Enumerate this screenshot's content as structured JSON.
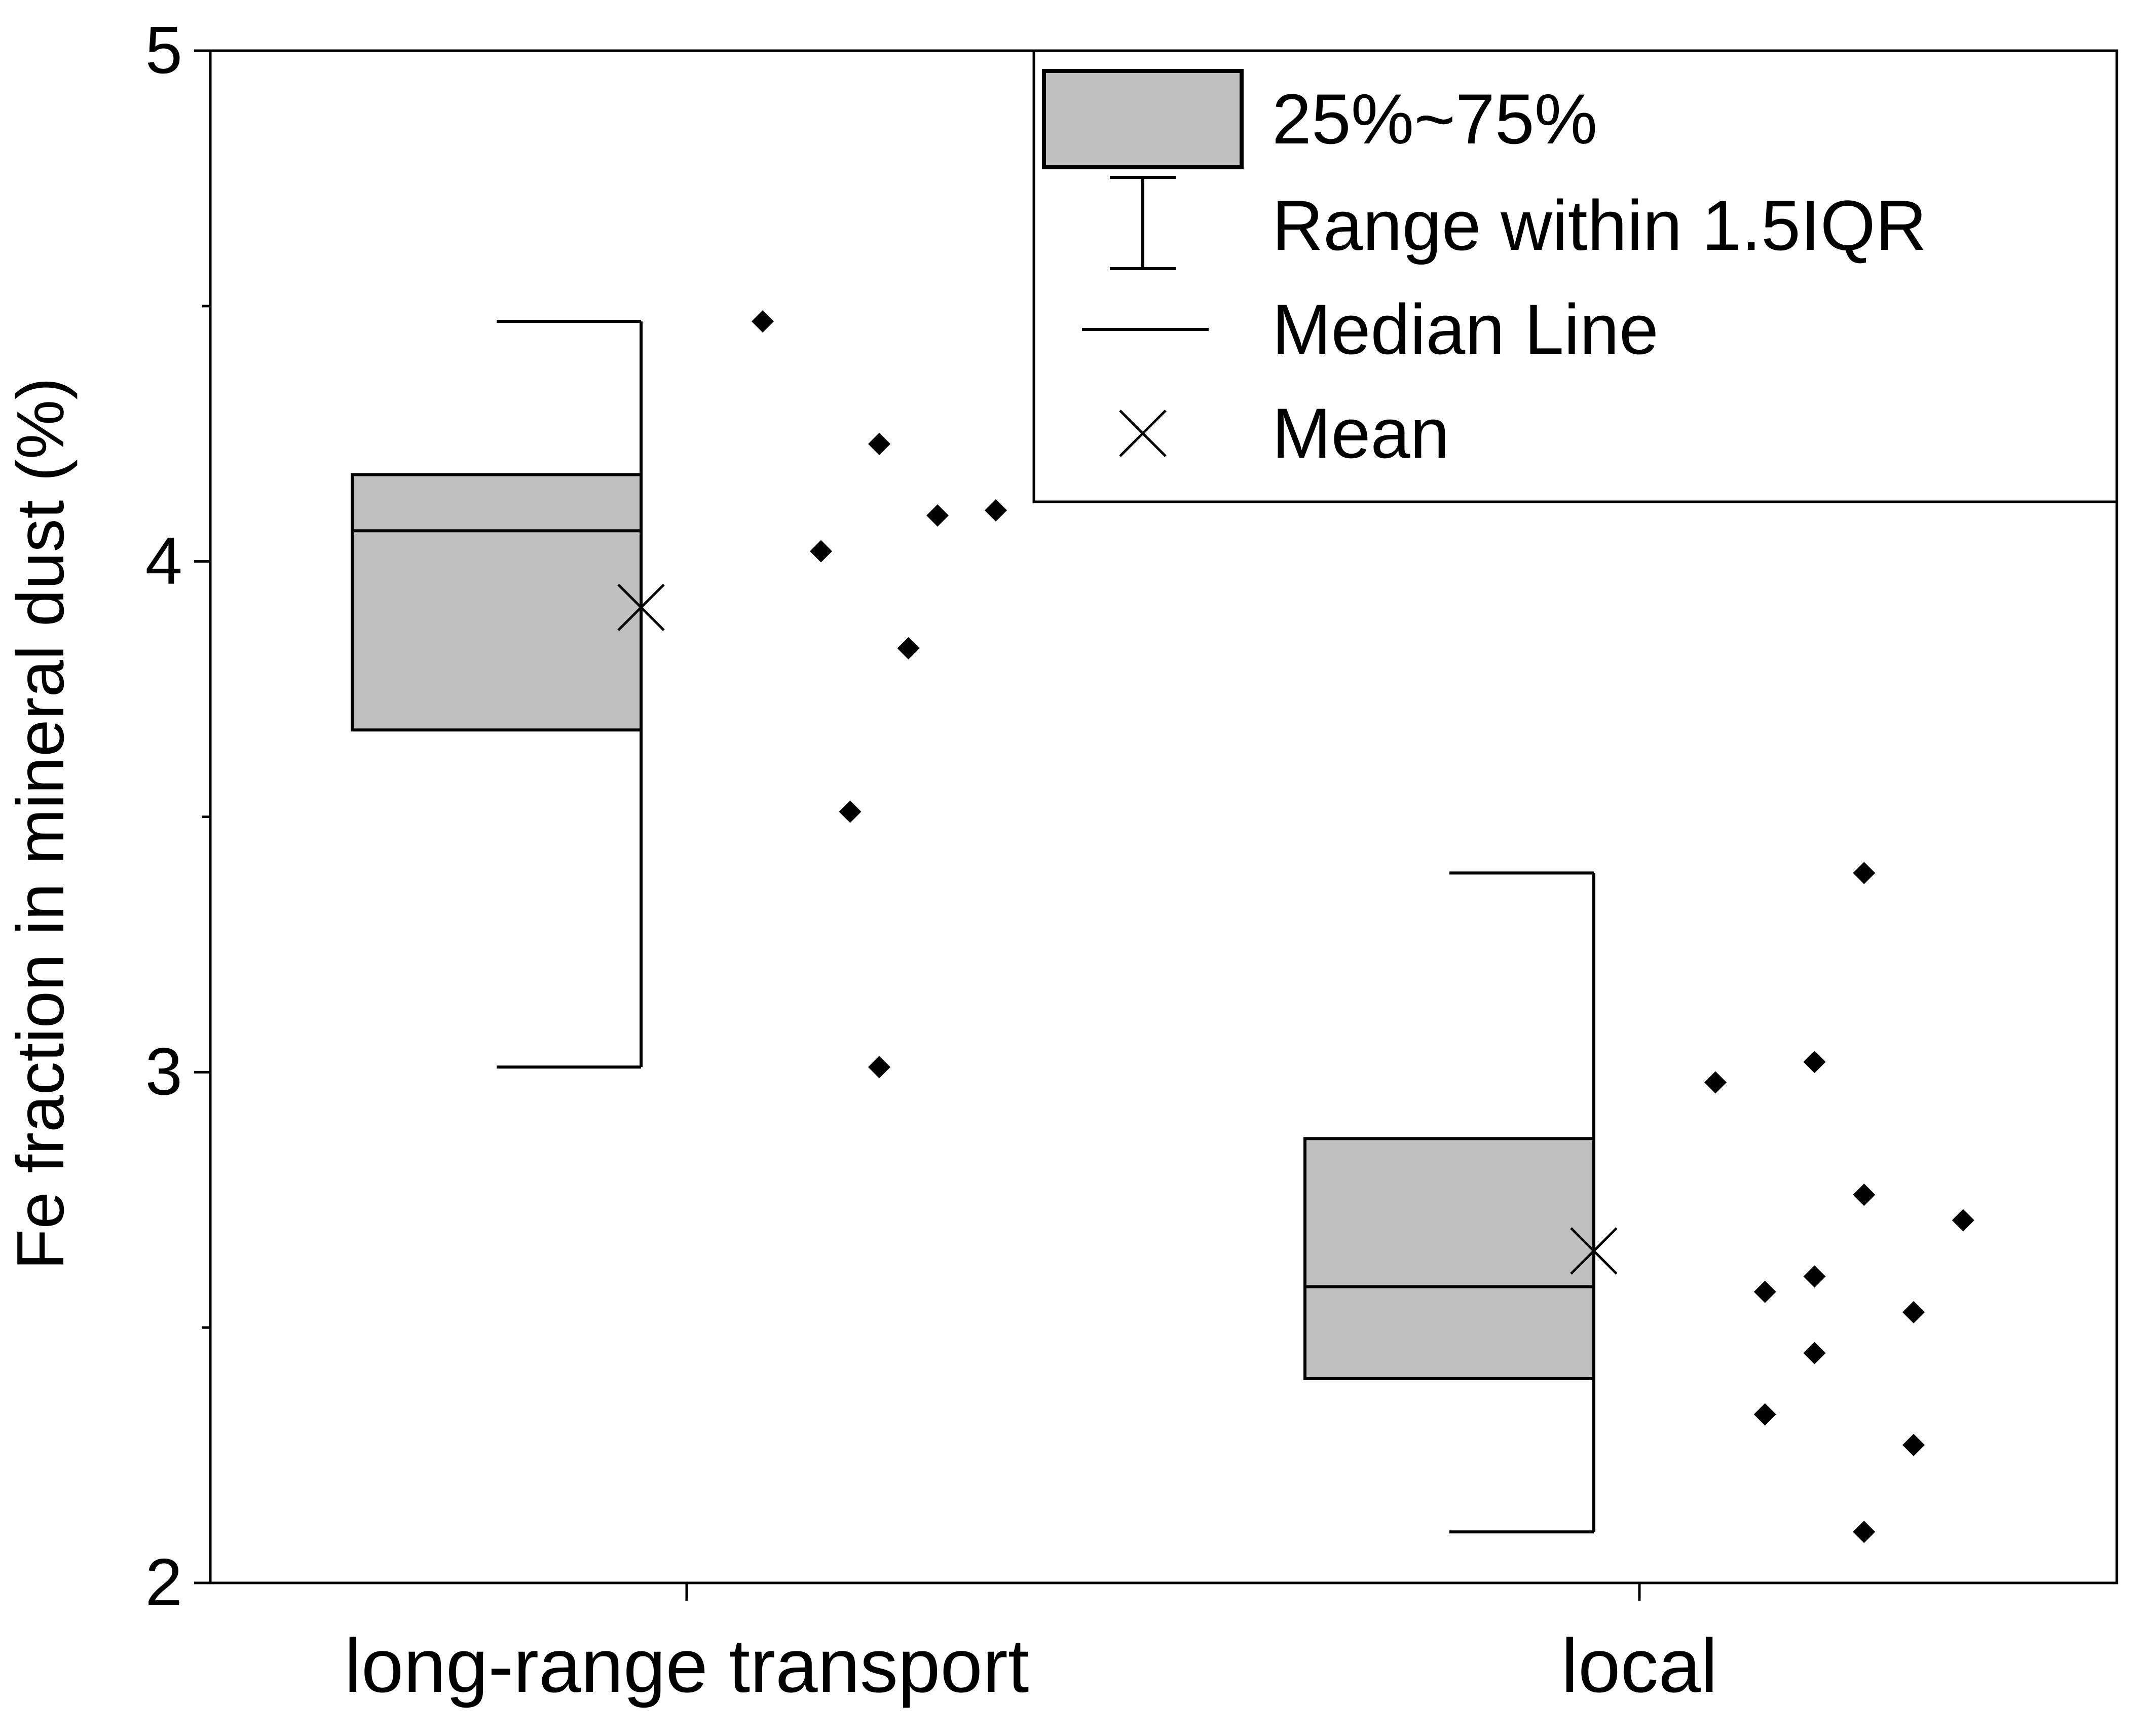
{
  "chart_data": {
    "type": "box",
    "ylabel": "Fe fraction in mineral dust (%)",
    "xlabel": "",
    "ylim": [
      2,
      5
    ],
    "yticks": [
      2,
      3,
      4,
      5
    ],
    "yminor_ticks": [
      2.5,
      3.5,
      4.5
    ],
    "grid": false,
    "legend_position": "top-right",
    "colors": {
      "box_fill": "#c0c0c0",
      "stroke": "#000000"
    },
    "legend": [
      {
        "key": "box",
        "label": "25%~75%",
        "icon": "box-swatch-icon"
      },
      {
        "key": "whisker",
        "label": "Range within 1.5IQR",
        "icon": "whisker-icon"
      },
      {
        "key": "median",
        "label": "Median Line",
        "icon": "median-line-icon"
      },
      {
        "key": "mean",
        "label": "Mean",
        "icon": "cross-marker-icon"
      }
    ],
    "groups": [
      {
        "category": "long-range transport",
        "q1": 3.67,
        "median": 4.06,
        "q3": 4.17,
        "whisker_low": 3.01,
        "whisker_high": 4.47,
        "mean": 3.91,
        "points": [
          4.47,
          4.02,
          3.51,
          4.23,
          3.01,
          3.83,
          4.09,
          4.1
        ]
      },
      {
        "category": "local",
        "q1": 2.4,
        "median": 2.58,
        "q3": 2.87,
        "whisker_low": 2.1,
        "whisker_high": 3.39,
        "mean": 2.65,
        "points": [
          2.98,
          2.57,
          2.33,
          2.6,
          2.45,
          3.02,
          3.39,
          2.76,
          2.1,
          2.53,
          2.27,
          2.71
        ]
      }
    ]
  }
}
